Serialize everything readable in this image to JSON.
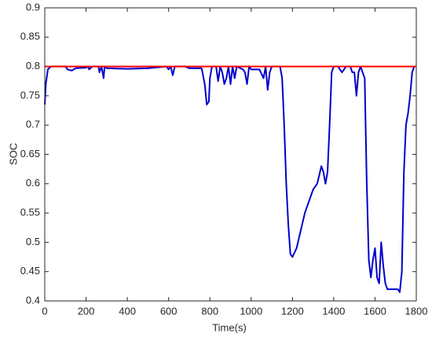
{
  "chart_data": {
    "type": "line",
    "xlabel": "Time(s)",
    "ylabel": "SOC",
    "xlim": [
      0,
      1800
    ],
    "xticks": [
      0,
      200,
      400,
      600,
      800,
      1000,
      1200,
      1400,
      1600,
      1800
    ],
    "ylim": [
      0.4,
      0.9
    ],
    "yticks": [
      0.4,
      0.45,
      0.5,
      0.55,
      0.6,
      0.65,
      0.7,
      0.75,
      0.8,
      0.85,
      0.9
    ],
    "grid": false,
    "series": [
      {
        "color": "#0000cd",
        "x": [
          0,
          5,
          15,
          30,
          100,
          110,
          130,
          150,
          200,
          210,
          215,
          230,
          260,
          265,
          275,
          285,
          290,
          300,
          400,
          500,
          590,
          600,
          610,
          620,
          630,
          680,
          700,
          760,
          775,
          785,
          795,
          800,
          810,
          830,
          840,
          850,
          860,
          870,
          880,
          890,
          900,
          910,
          920,
          930,
          960,
          970,
          980,
          990,
          1000,
          1040,
          1060,
          1070,
          1080,
          1090,
          1100,
          1140,
          1150,
          1160,
          1170,
          1180,
          1190,
          1200,
          1220,
          1240,
          1260,
          1280,
          1300,
          1320,
          1340,
          1350,
          1360,
          1370,
          1380,
          1390,
          1400,
          1420,
          1440,
          1460,
          1480,
          1490,
          1500,
          1510,
          1520,
          1530,
          1550,
          1560,
          1570,
          1580,
          1590,
          1600,
          1610,
          1620,
          1630,
          1640,
          1650,
          1660,
          1700,
          1710,
          1720,
          1730,
          1740,
          1750,
          1760,
          1770,
          1780,
          1790
        ],
        "values": [
          0.735,
          0.77,
          0.795,
          0.8,
          0.8,
          0.795,
          0.793,
          0.797,
          0.798,
          0.8,
          0.795,
          0.8,
          0.8,
          0.79,
          0.8,
          0.78,
          0.8,
          0.797,
          0.796,
          0.797,
          0.8,
          0.795,
          0.8,
          0.785,
          0.8,
          0.8,
          0.797,
          0.797,
          0.77,
          0.735,
          0.74,
          0.78,
          0.8,
          0.8,
          0.775,
          0.8,
          0.79,
          0.77,
          0.78,
          0.8,
          0.77,
          0.8,
          0.78,
          0.8,
          0.795,
          0.79,
          0.77,
          0.8,
          0.795,
          0.795,
          0.78,
          0.8,
          0.76,
          0.79,
          0.8,
          0.8,
          0.78,
          0.7,
          0.6,
          0.53,
          0.48,
          0.475,
          0.49,
          0.52,
          0.55,
          0.57,
          0.59,
          0.6,
          0.63,
          0.62,
          0.6,
          0.62,
          0.7,
          0.79,
          0.8,
          0.8,
          0.79,
          0.8,
          0.8,
          0.79,
          0.79,
          0.75,
          0.79,
          0.8,
          0.78,
          0.6,
          0.47,
          0.44,
          0.47,
          0.49,
          0.44,
          0.43,
          0.5,
          0.46,
          0.43,
          0.42,
          0.42,
          0.42,
          0.415,
          0.45,
          0.62,
          0.7,
          0.72,
          0.75,
          0.79,
          0.8
        ]
      },
      {
        "color": "#ff0000",
        "x": [
          0,
          1800
        ],
        "values": [
          0.8,
          0.8
        ]
      }
    ]
  }
}
